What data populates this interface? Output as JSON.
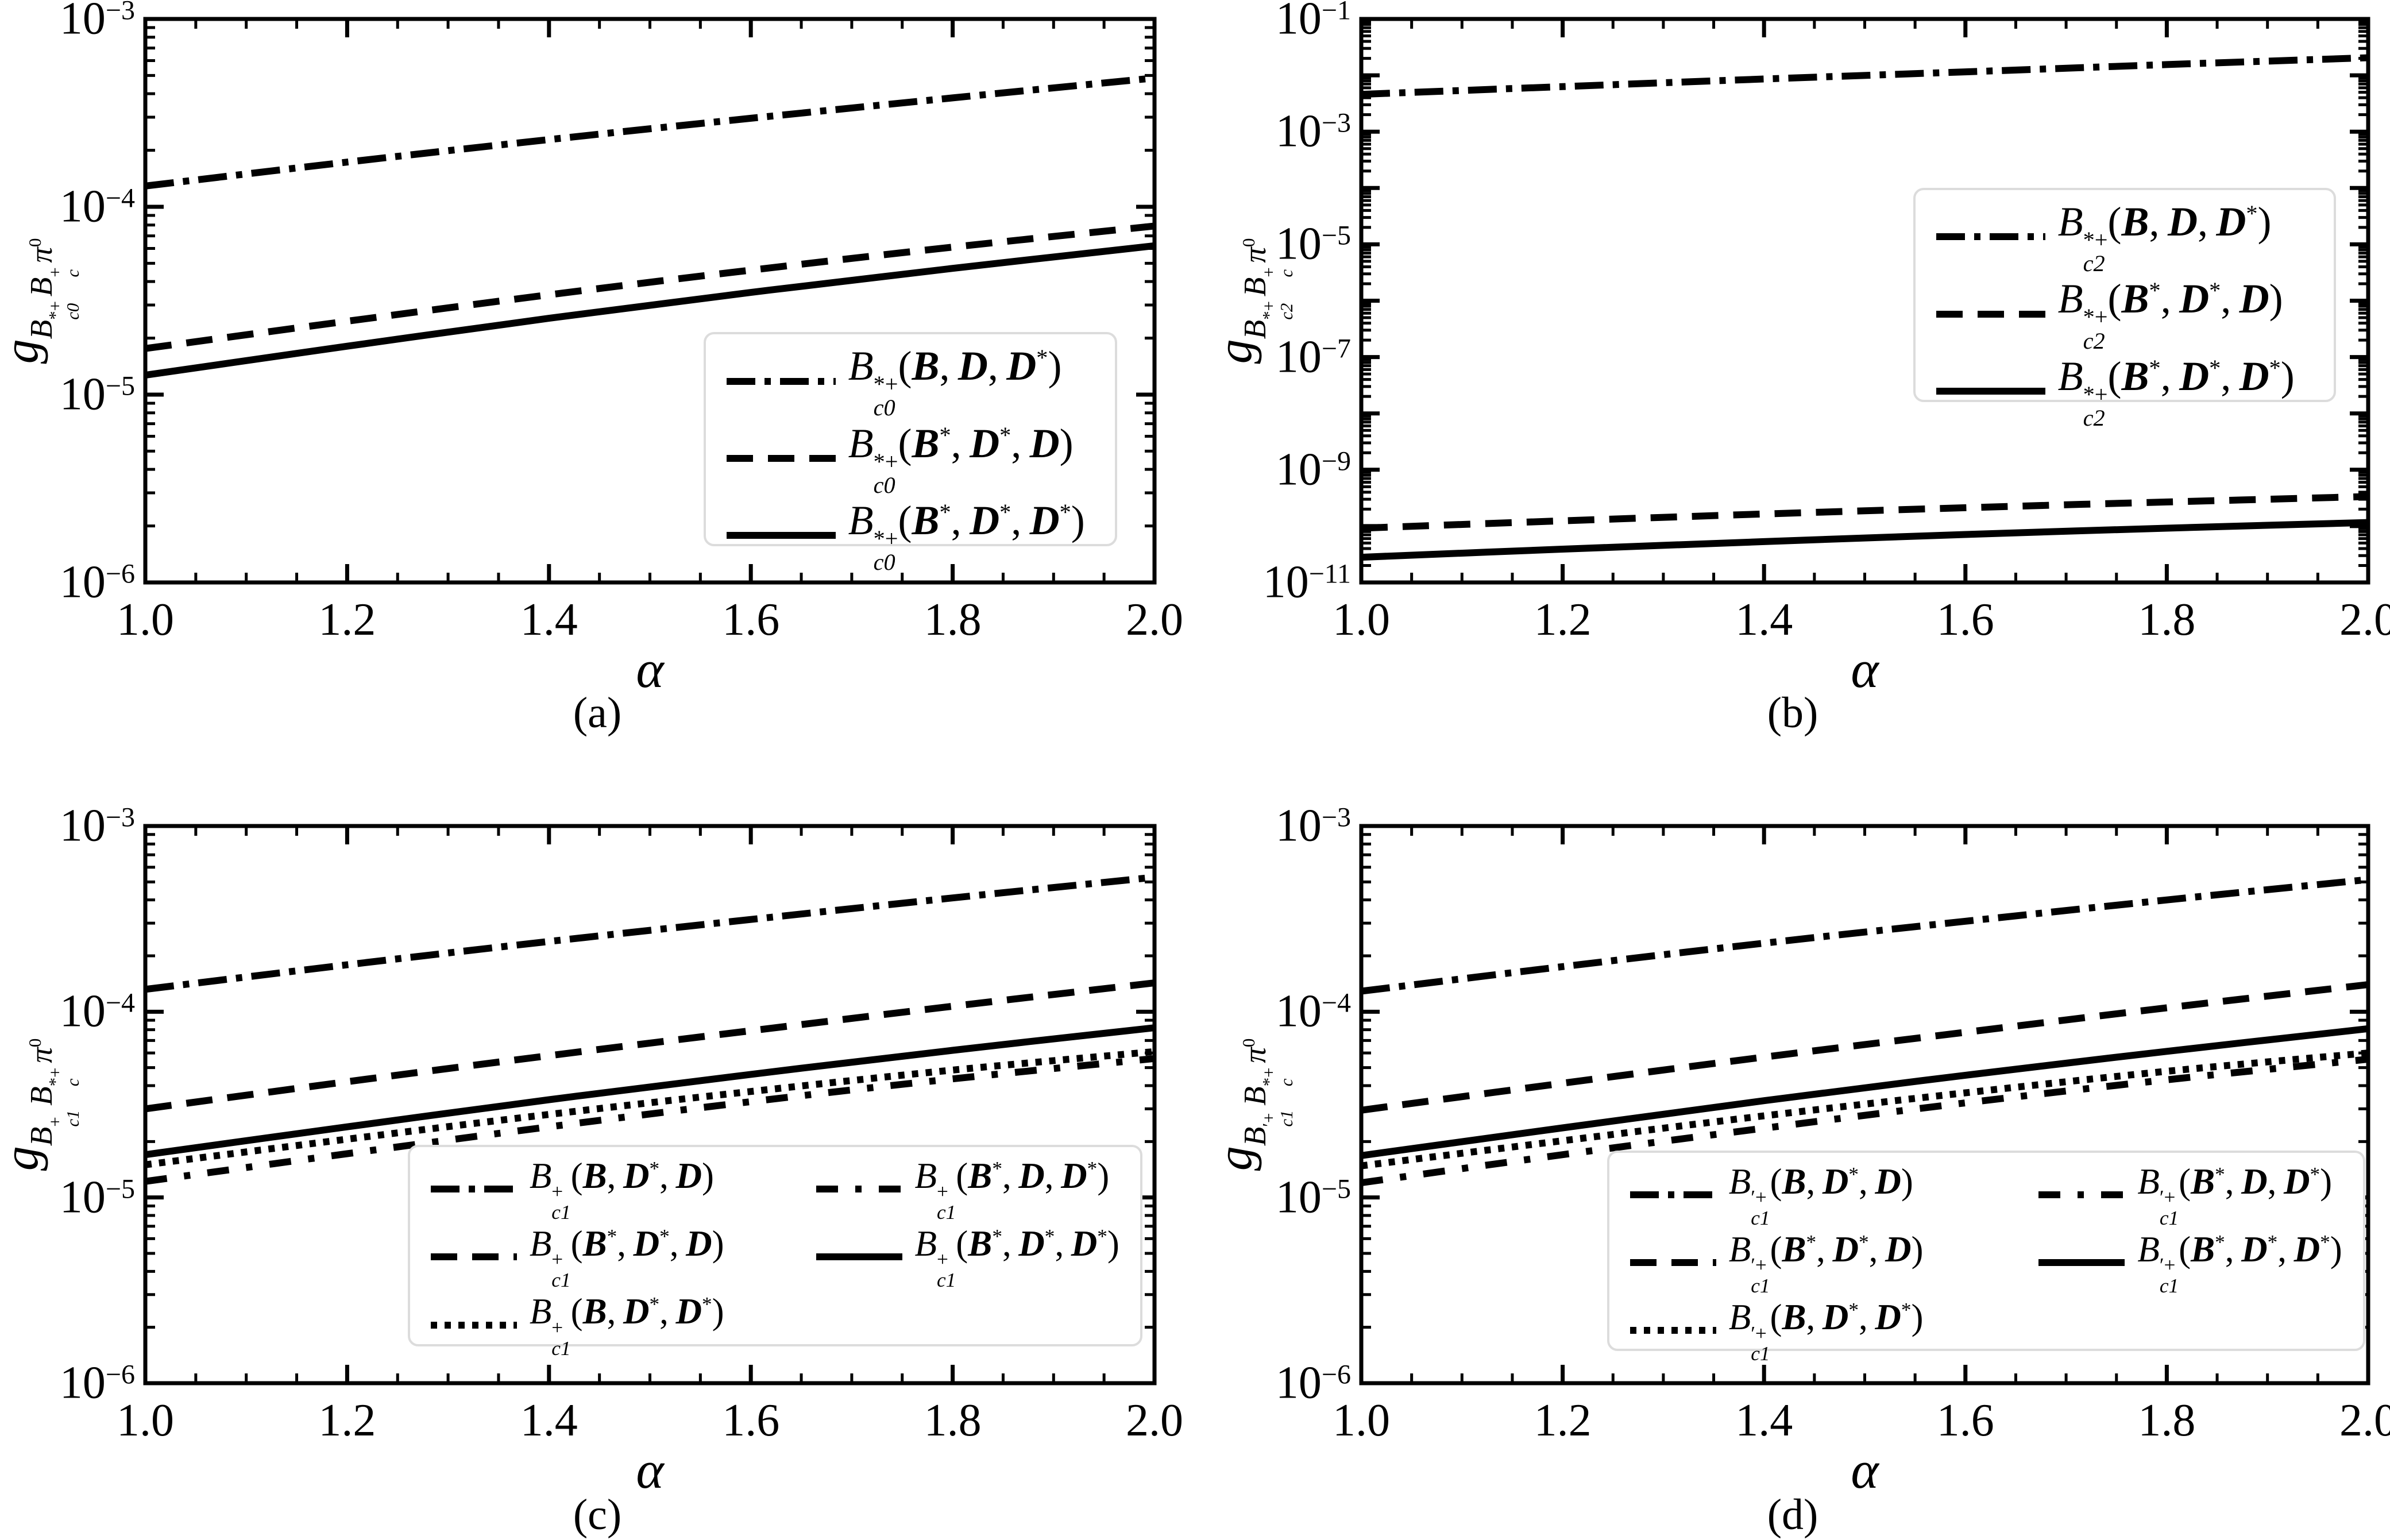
{
  "figure": {
    "bg": "#ffffff",
    "line_color": "#000000",
    "legend_border_color": "#dcdcdc",
    "tick_direction": "in"
  },
  "chart_data": [
    {
      "id": "a",
      "type": "line",
      "caption": "(a)",
      "xlabel": "α",
      "ylabel_text": "g_{B_{c0}^{*+} B_c^{+} π^0}",
      "ylabel_parts": {
        "main": "g",
        "groups": [
          {
            "base": "B",
            "sup": "*+",
            "sub": "c0"
          },
          {
            "base": "B",
            "sup": "+",
            "sub": "c"
          },
          {
            "base": "π",
            "sup": "0",
            "sub": ""
          }
        ]
      },
      "xscale": "linear",
      "yscale": "log",
      "xlim": [
        1.0,
        2.0
      ],
      "ylim": [
        1e-06,
        0.001
      ],
      "x_ticks": [
        1.0,
        1.2,
        1.4,
        1.6,
        1.8,
        2.0
      ],
      "x_tick_labels": [
        "1.0",
        "1.2",
        "1.4",
        "1.6",
        "1.8",
        "2.0"
      ],
      "x_minor_step": 0.05,
      "y_labeled_exponents": [
        -3,
        -4,
        -5,
        -6
      ],
      "grid": false,
      "legend": {
        "position": "lower right",
        "cols": 1,
        "size": "big",
        "box": {
          "x": 0.553,
          "y": 0.556,
          "w": 0.41,
          "h": 0.38
        }
      },
      "x": [
        1.0,
        1.2,
        1.4,
        1.6,
        1.8,
        2.0
      ],
      "series": [
        {
          "name": "B_{c0}^{*+}(ℬ, 𝒟, 𝒟*)",
          "dash": "dashdot",
          "label": {
            "head": "B",
            "sup": "*+",
            "sub": "c0",
            "args": [
              "B",
              "D",
              "D*"
            ]
          },
          "values": [
            0.000129,
            0.000173,
            0.000228,
            0.000296,
            0.00038,
            0.000485
          ]
        },
        {
          "name": "B_{c0}^{*+}(ℬ*, 𝒟*, 𝒟)",
          "dash": "dashed",
          "label": {
            "head": "B",
            "sup": "*+",
            "sub": "c0",
            "args": [
              "B*",
              "D*",
              "D"
            ]
          },
          "values": [
            1.76e-05,
            2.46e-05,
            3.4e-05,
            4.6e-05,
            6.1e-05,
            7.9e-05
          ]
        },
        {
          "name": "B_{c0}^{*+}(ℬ*, 𝒟*, 𝒟*)",
          "dash": "solid",
          "label": {
            "head": "B",
            "sup": "*+",
            "sub": "c0",
            "args": [
              "B*",
              "D*",
              "D*"
            ]
          },
          "values": [
            1.27e-05,
            1.81e-05,
            2.55e-05,
            3.5e-05,
            4.7e-05,
            6.2e-05
          ]
        }
      ]
    },
    {
      "id": "b",
      "type": "line",
      "caption": "(b)",
      "xlabel": "α",
      "ylabel_text": "g_{B_{c2}^{*+} B_c^{+} π^0}",
      "ylabel_parts": {
        "main": "g",
        "groups": [
          {
            "base": "B",
            "sup": "*+",
            "sub": "c2"
          },
          {
            "base": "B",
            "sup": "+",
            "sub": "c"
          },
          {
            "base": "π",
            "sup": "0",
            "sub": ""
          }
        ]
      },
      "xscale": "linear",
      "yscale": "log",
      "xlim": [
        1.0,
        2.0
      ],
      "ylim": [
        1e-11,
        0.1
      ],
      "x_ticks": [
        1.0,
        1.2,
        1.4,
        1.6,
        1.8,
        2.0
      ],
      "x_tick_labels": [
        "1.0",
        "1.2",
        "1.4",
        "1.6",
        "1.8",
        "2.0"
      ],
      "x_minor_step": 0.05,
      "y_labeled_exponents": [
        -1,
        -3,
        -5,
        -7,
        -9,
        -11
      ],
      "grid": false,
      "legend": {
        "position": "upper right",
        "cols": 1,
        "size": "big",
        "box": {
          "x": 0.548,
          "y": 0.3,
          "w": 0.42,
          "h": 0.38
        }
      },
      "x": [
        1.0,
        1.2,
        1.4,
        1.6,
        1.8,
        2.0
      ],
      "series": [
        {
          "name": "B_{c2}^{*+}(ℬ, 𝒟, 𝒟*)",
          "dash": "dashdot",
          "label": {
            "head": "B",
            "sup": "*+",
            "sub": "c2",
            "args": [
              "B",
              "D",
              "D*"
            ]
          },
          "values": [
            0.0046,
            0.0063,
            0.0086,
            0.0115,
            0.0155,
            0.0205
          ]
        },
        {
          "name": "B_{c2}^{*+}(ℬ*, 𝒟*, 𝒟)",
          "dash": "dashed",
          "label": {
            "head": "B",
            "sup": "*+",
            "sub": "c2",
            "args": [
              "B*",
              "D*",
              "D"
            ]
          },
          "values": [
            9.2e-11,
            1.24e-10,
            1.64e-10,
            2.12e-10,
            2.68e-10,
            3.35e-10
          ]
        },
        {
          "name": "B_{c2}^{*+}(ℬ*, 𝒟*, 𝒟*)",
          "dash": "solid",
          "label": {
            "head": "B",
            "sup": "*+",
            "sub": "c2",
            "args": [
              "B*",
              "D*",
              "D*"
            ]
          },
          "values": [
            2.8e-11,
            3.9e-11,
            5.3e-11,
            7.1e-11,
            9.2e-11,
            1.16e-10
          ]
        }
      ]
    },
    {
      "id": "c",
      "type": "line",
      "caption": "(c)",
      "xlabel": "α",
      "ylabel_text": "g_{B_{c1}^{+} B_c^{*+} π^0}",
      "ylabel_parts": {
        "main": "g",
        "groups": [
          {
            "base": "B",
            "sup": "+",
            "sub": "c1"
          },
          {
            "base": "B",
            "sup": "*+",
            "sub": "c"
          },
          {
            "base": "π",
            "sup": "0",
            "sub": ""
          }
        ]
      },
      "xscale": "linear",
      "yscale": "log",
      "xlim": [
        1.0,
        2.0
      ],
      "ylim": [
        1e-06,
        0.001
      ],
      "x_ticks": [
        1.0,
        1.2,
        1.4,
        1.6,
        1.8,
        2.0
      ],
      "x_tick_labels": [
        "1.0",
        "1.2",
        "1.4",
        "1.6",
        "1.8",
        "2.0"
      ],
      "x_minor_step": 0.05,
      "y_labeled_exponents": [
        -3,
        -4,
        -5,
        -6
      ],
      "grid": false,
      "legend": {
        "position": "lower right",
        "cols": 2,
        "size": "small",
        "box": {
          "x": 0.26,
          "y": 0.572,
          "w": 0.728,
          "h": 0.362
        }
      },
      "x": [
        1.0,
        1.2,
        1.4,
        1.6,
        1.8,
        2.0
      ],
      "series": [
        {
          "name": "B_{c1}^{+}(ℬ, 𝒟*, 𝒟)",
          "dash": "dashdot",
          "label": {
            "head": "B",
            "sup": "+",
            "sub": "c1",
            "args": [
              "B",
              "D*",
              "D"
            ]
          },
          "values": [
            0.000132,
            0.000179,
            0.000239,
            0.000314,
            0.00041,
            0.00053
          ]
        },
        {
          "name": "B_{c1}^{+}(ℬ*, 𝒟*, 𝒟)",
          "dash": "dashed",
          "label": {
            "head": "B",
            "sup": "+",
            "sub": "c1",
            "args": [
              "B*",
              "D*",
              "D"
            ]
          },
          "values": [
            3e-05,
            4.2e-05,
            5.8e-05,
            7.9e-05,
            0.000107,
            0.000143
          ]
        },
        {
          "name": "B_{c1}^{+}(ℬ, 𝒟*, 𝒟*)",
          "dash": "dotted",
          "label": {
            "head": "B",
            "sup": "+",
            "sub": "c1",
            "args": [
              "B",
              "D*",
              "D*"
            ]
          },
          "values": [
            1.5e-05,
            2.06e-05,
            2.8e-05,
            3.72e-05,
            4.85e-05,
            6.1e-05
          ]
        },
        {
          "name": "B_{c1}^{+}(ℬ*, 𝒟, 𝒟*)",
          "dash": "loosely-dashdot",
          "label": {
            "head": "B",
            "sup": "+",
            "sub": "c1",
            "args": [
              "B*",
              "D",
              "D*"
            ]
          },
          "values": [
            1.22e-05,
            1.72e-05,
            2.4e-05,
            3.28e-05,
            4.35e-05,
            5.6e-05
          ]
        },
        {
          "name": "B_{c1}^{+}(ℬ*, 𝒟*, 𝒟*)",
          "dash": "solid",
          "label": {
            "head": "B",
            "sup": "+",
            "sub": "c1",
            "args": [
              "B*",
              "D*",
              "D*"
            ]
          },
          "values": [
            1.7e-05,
            2.4e-05,
            3.36e-05,
            4.6e-05,
            6.2e-05,
            8.2e-05
          ]
        }
      ]
    },
    {
      "id": "d",
      "type": "line",
      "caption": "(d)",
      "xlabel": "α",
      "ylabel_text": "g_{B_{c1}^{′+} B_c^{*+} π^0}",
      "ylabel_parts": {
        "main": "g",
        "groups": [
          {
            "base": "B",
            "sup": "′+",
            "sub": "c1"
          },
          {
            "base": "B",
            "sup": "*+",
            "sub": "c"
          },
          {
            "base": "π",
            "sup": "0",
            "sub": ""
          }
        ]
      },
      "xscale": "linear",
      "yscale": "log",
      "xlim": [
        1.0,
        2.0
      ],
      "ylim": [
        1e-06,
        0.001
      ],
      "x_ticks": [
        1.0,
        1.2,
        1.4,
        1.6,
        1.8,
        2.0
      ],
      "x_tick_labels": [
        "1.0",
        "1.2",
        "1.4",
        "1.6",
        "1.8",
        "2.0"
      ],
      "x_minor_step": 0.05,
      "y_labeled_exponents": [
        -3,
        -4,
        -5,
        -6
      ],
      "grid": false,
      "legend": {
        "position": "lower right",
        "cols": 2,
        "size": "small",
        "box": {
          "x": 0.244,
          "y": 0.582,
          "w": 0.753,
          "h": 0.36
        }
      },
      "x": [
        1.0,
        1.2,
        1.4,
        1.6,
        1.8,
        2.0
      ],
      "series": [
        {
          "name": "B_{c1}^{′+}(ℬ, 𝒟*, 𝒟)",
          "dash": "dashdot",
          "label": {
            "head": "B",
            "sup": "′+",
            "sub": "c1",
            "args": [
              "B",
              "D*",
              "D"
            ]
          },
          "values": [
            0.000129,
            0.000175,
            0.000234,
            0.000307,
            0.0004,
            0.000515
          ]
        },
        {
          "name": "B_{c1}^{′+}(ℬ*, 𝒟*, 𝒟)",
          "dash": "dashed",
          "label": {
            "head": "B",
            "sup": "′+",
            "sub": "c1",
            "args": [
              "B*",
              "D*",
              "D"
            ]
          },
          "values": [
            2.95e-05,
            4.12e-05,
            5.7e-05,
            7.75e-05,
            0.000105,
            0.00014
          ]
        },
        {
          "name": "B_{c1}^{′+}(ℬ, 𝒟*, 𝒟*)",
          "dash": "dotted",
          "label": {
            "head": "B",
            "sup": "′+",
            "sub": "c1",
            "args": [
              "B",
              "D*",
              "D*"
            ]
          },
          "values": [
            1.48e-05,
            2.02e-05,
            2.75e-05,
            3.66e-05,
            4.78e-05,
            6e-05
          ]
        },
        {
          "name": "B_{c1}^{′+}(ℬ*, 𝒟, 𝒟*)",
          "dash": "loosely-dashdot",
          "label": {
            "head": "B",
            "sup": "′+",
            "sub": "c1",
            "args": [
              "B*",
              "D",
              "D*"
            ]
          },
          "values": [
            1.2e-05,
            1.7e-05,
            2.36e-05,
            3.23e-05,
            4.3e-05,
            5.55e-05
          ]
        },
        {
          "name": "B_{c1}^{′+}(ℬ*, 𝒟*, 𝒟*)",
          "dash": "solid",
          "label": {
            "head": "B",
            "sup": "′+",
            "sub": "c1",
            "args": [
              "B*",
              "D*",
              "D*"
            ]
          },
          "values": [
            1.68e-05,
            2.37e-05,
            3.32e-05,
            4.55e-05,
            6.12e-05,
            8.1e-05
          ]
        }
      ]
    }
  ]
}
